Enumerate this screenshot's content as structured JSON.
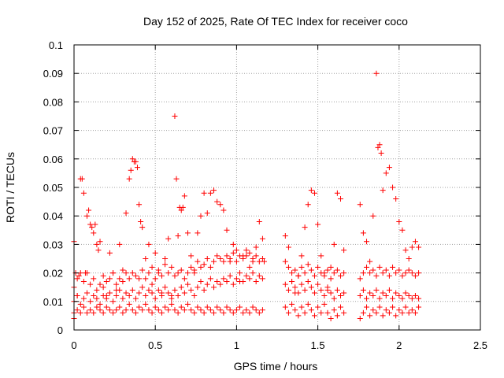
{
  "chart_data": {
    "type": "scatter",
    "title": "Day 152 of 2025, Rate Of TEC Index for receiver coco",
    "xlabel": "GPS time / hours",
    "ylabel": "ROTI / TECUs",
    "xlim": [
      0,
      2.5
    ],
    "ylim": [
      0,
      0.1
    ],
    "xticks": [
      0,
      0.5,
      1,
      1.5,
      2,
      2.5
    ],
    "yticks": [
      0,
      0.01,
      0.02,
      0.03,
      0.04,
      0.05,
      0.06,
      0.07,
      0.08,
      0.09,
      0.1
    ],
    "xtick_labels": [
      "0",
      "0.5",
      "1",
      "1.5",
      "2",
      "2.5"
    ],
    "ytick_labels": [
      "0",
      "0.01",
      "0.02",
      "0.03",
      "0.04",
      "0.05",
      "0.06",
      "0.07",
      "0.08",
      "0.09",
      "0.1"
    ],
    "grid": true,
    "marker": "plus",
    "color": "#ff0000",
    "series": [
      {
        "x": [
          0.0,
          0.0,
          0.01,
          0.02,
          0.03,
          0.04,
          0.05,
          0.06,
          0.07,
          0.08,
          0.09,
          0.1,
          0.11,
          0.12,
          0.13,
          0.14,
          0.15,
          0.16,
          0.18,
          0.2,
          0.22,
          0.24,
          0.26,
          0.28,
          0.3,
          0.32,
          0.34,
          0.35,
          0.36,
          0.37,
          0.38,
          0.39,
          0.4,
          0.41,
          0.42,
          0.44,
          0.46,
          0.48,
          0.5,
          0.52,
          0.54,
          0.56,
          0.58,
          0.6,
          0.62,
          0.63,
          0.64,
          0.65,
          0.66,
          0.67,
          0.68,
          0.7,
          0.72,
          0.74,
          0.76,
          0.78,
          0.8,
          0.82,
          0.84,
          0.86,
          0.88,
          0.9,
          0.92,
          0.94,
          0.96,
          0.98,
          1.0,
          1.02,
          1.04,
          1.06,
          1.08,
          1.1,
          1.12,
          1.14,
          1.16,
          1.17,
          1.3,
          1.32,
          1.34,
          1.36,
          1.38,
          1.4,
          1.42,
          1.44,
          1.46,
          1.48,
          1.5,
          1.52,
          1.54,
          1.56,
          1.58,
          1.6,
          1.62,
          1.64,
          1.66,
          1.76,
          1.78,
          1.8,
          1.82,
          1.84,
          1.86,
          1.87,
          1.88,
          1.89,
          1.9,
          1.92,
          1.94,
          1.96,
          1.98,
          2.0,
          2.02,
          2.04,
          2.06,
          2.08,
          2.1,
          2.12
        ],
        "y": [
          0.031,
          0.004,
          0.02,
          0.012,
          0.019,
          0.053,
          0.053,
          0.048,
          0.02,
          0.04,
          0.042,
          0.037,
          0.036,
          0.034,
          0.037,
          0.03,
          0.028,
          0.031,
          0.015,
          0.012,
          0.027,
          0.02,
          0.014,
          0.03,
          0.021,
          0.041,
          0.053,
          0.056,
          0.06,
          0.059,
          0.059,
          0.057,
          0.044,
          0.038,
          0.036,
          0.025,
          0.03,
          0.016,
          0.027,
          0.02,
          0.013,
          0.025,
          0.032,
          0.012,
          0.075,
          0.053,
          0.033,
          0.043,
          0.042,
          0.043,
          0.047,
          0.034,
          0.026,
          0.02,
          0.034,
          0.04,
          0.048,
          0.041,
          0.048,
          0.049,
          0.045,
          0.044,
          0.042,
          0.035,
          0.024,
          0.03,
          0.028,
          0.017,
          0.026,
          0.028,
          0.022,
          0.024,
          0.029,
          0.038,
          0.032,
          0.024,
          0.033,
          0.029,
          0.017,
          0.013,
          0.019,
          0.026,
          0.036,
          0.044,
          0.049,
          0.048,
          0.037,
          0.026,
          0.02,
          0.014,
          0.022,
          0.03,
          0.048,
          0.046,
          0.028,
          0.044,
          0.034,
          0.031,
          0.024,
          0.04,
          0.09,
          0.064,
          0.065,
          0.062,
          0.049,
          0.055,
          0.057,
          0.05,
          0.046,
          0.038,
          0.035,
          0.028,
          0.025,
          0.029,
          0.031,
          0.029
        ]
      },
      {
        "x": [
          0.0,
          0.02,
          0.04,
          0.06,
          0.08,
          0.1,
          0.12,
          0.14,
          0.16,
          0.18,
          0.2,
          0.22,
          0.24,
          0.26,
          0.28,
          0.3,
          0.32,
          0.34,
          0.36,
          0.38,
          0.4,
          0.42,
          0.44,
          0.46,
          0.48,
          0.5,
          0.52,
          0.54,
          0.56,
          0.58,
          0.6,
          0.62,
          0.64,
          0.66,
          0.68,
          0.7,
          0.72,
          0.74,
          0.76,
          0.78,
          0.8,
          0.82,
          0.84,
          0.86,
          0.88,
          0.9,
          0.92,
          0.94,
          0.96,
          0.98,
          1.0,
          1.02,
          1.04,
          1.06,
          1.08,
          1.1,
          1.12,
          1.14,
          1.16,
          1.3,
          1.32,
          1.34,
          1.36,
          1.38,
          1.4,
          1.42,
          1.44,
          1.46,
          1.48,
          1.5,
          1.52,
          1.54,
          1.56,
          1.58,
          1.6,
          1.62,
          1.64,
          1.66,
          1.76,
          1.78,
          1.8,
          1.82,
          1.84,
          1.86,
          1.88,
          1.9,
          1.92,
          1.94,
          1.96,
          1.98,
          2.0,
          2.02,
          2.04,
          2.06,
          2.08,
          2.1,
          2.12
        ],
        "y": [
          0.015,
          0.018,
          0.02,
          0.017,
          0.02,
          0.016,
          0.018,
          0.014,
          0.016,
          0.019,
          0.017,
          0.018,
          0.02,
          0.016,
          0.018,
          0.017,
          0.02,
          0.018,
          0.02,
          0.019,
          0.018,
          0.021,
          0.018,
          0.02,
          0.022,
          0.018,
          0.021,
          0.019,
          0.023,
          0.02,
          0.022,
          0.019,
          0.02,
          0.021,
          0.018,
          0.02,
          0.022,
          0.021,
          0.024,
          0.022,
          0.023,
          0.025,
          0.022,
          0.024,
          0.026,
          0.025,
          0.024,
          0.026,
          0.025,
          0.027,
          0.024,
          0.026,
          0.025,
          0.026,
          0.027,
          0.025,
          0.026,
          0.024,
          0.025,
          0.024,
          0.022,
          0.02,
          0.021,
          0.019,
          0.022,
          0.02,
          0.023,
          0.021,
          0.019,
          0.022,
          0.02,
          0.019,
          0.021,
          0.018,
          0.02,
          0.021,
          0.019,
          0.02,
          0.018,
          0.02,
          0.022,
          0.02,
          0.021,
          0.019,
          0.022,
          0.02,
          0.021,
          0.019,
          0.022,
          0.02,
          0.021,
          0.019,
          0.02,
          0.021,
          0.02,
          0.019,
          0.02
        ]
      },
      {
        "x": [
          0.0,
          0.02,
          0.04,
          0.06,
          0.08,
          0.1,
          0.12,
          0.14,
          0.16,
          0.18,
          0.2,
          0.22,
          0.24,
          0.26,
          0.28,
          0.3,
          0.32,
          0.34,
          0.36,
          0.38,
          0.4,
          0.42,
          0.44,
          0.46,
          0.48,
          0.5,
          0.52,
          0.54,
          0.56,
          0.58,
          0.6,
          0.62,
          0.64,
          0.66,
          0.68,
          0.7,
          0.72,
          0.74,
          0.76,
          0.78,
          0.8,
          0.82,
          0.84,
          0.86,
          0.88,
          0.9,
          0.92,
          0.94,
          0.96,
          0.98,
          1.0,
          1.02,
          1.04,
          1.06,
          1.08,
          1.1,
          1.12,
          1.14,
          1.16,
          1.3,
          1.32,
          1.34,
          1.36,
          1.38,
          1.4,
          1.42,
          1.44,
          1.46,
          1.48,
          1.5,
          1.52,
          1.54,
          1.56,
          1.58,
          1.6,
          1.62,
          1.64,
          1.66,
          1.76,
          1.78,
          1.8,
          1.82,
          1.84,
          1.86,
          1.88,
          1.9,
          1.92,
          1.94,
          1.96,
          1.98,
          2.0,
          2.02,
          2.04,
          2.06,
          2.08,
          2.1,
          2.12
        ],
        "y": [
          0.01,
          0.012,
          0.009,
          0.011,
          0.013,
          0.01,
          0.012,
          0.011,
          0.009,
          0.012,
          0.011,
          0.013,
          0.01,
          0.012,
          0.014,
          0.011,
          0.013,
          0.012,
          0.014,
          0.011,
          0.013,
          0.015,
          0.012,
          0.014,
          0.013,
          0.011,
          0.014,
          0.012,
          0.015,
          0.013,
          0.011,
          0.014,
          0.012,
          0.015,
          0.013,
          0.016,
          0.014,
          0.012,
          0.015,
          0.017,
          0.014,
          0.016,
          0.018,
          0.015,
          0.017,
          0.016,
          0.018,
          0.017,
          0.019,
          0.016,
          0.018,
          0.02,
          0.017,
          0.019,
          0.018,
          0.02,
          0.017,
          0.019,
          0.018,
          0.016,
          0.014,
          0.017,
          0.015,
          0.013,
          0.016,
          0.014,
          0.017,
          0.015,
          0.013,
          0.016,
          0.014,
          0.012,
          0.015,
          0.013,
          0.011,
          0.014,
          0.012,
          0.013,
          0.012,
          0.014,
          0.011,
          0.013,
          0.012,
          0.014,
          0.011,
          0.013,
          0.012,
          0.014,
          0.011,
          0.013,
          0.012,
          0.011,
          0.013,
          0.012,
          0.011,
          0.012,
          0.011
        ]
      },
      {
        "x": [
          0.0,
          0.02,
          0.04,
          0.06,
          0.08,
          0.1,
          0.12,
          0.14,
          0.16,
          0.18,
          0.2,
          0.22,
          0.24,
          0.26,
          0.28,
          0.3,
          0.32,
          0.34,
          0.36,
          0.38,
          0.4,
          0.42,
          0.44,
          0.46,
          0.48,
          0.5,
          0.52,
          0.54,
          0.56,
          0.58,
          0.6,
          0.62,
          0.64,
          0.66,
          0.68,
          0.7,
          0.72,
          0.74,
          0.76,
          0.78,
          0.8,
          0.82,
          0.84,
          0.86,
          0.88,
          0.9,
          0.92,
          0.94,
          0.96,
          0.98,
          1.0,
          1.02,
          1.04,
          1.06,
          1.08,
          1.1,
          1.12,
          1.14,
          1.16,
          1.3,
          1.32,
          1.34,
          1.36,
          1.38,
          1.4,
          1.42,
          1.44,
          1.46,
          1.48,
          1.5,
          1.52,
          1.54,
          1.56,
          1.58,
          1.6,
          1.62,
          1.64,
          1.66,
          1.76,
          1.78,
          1.8,
          1.82,
          1.84,
          1.86,
          1.88,
          1.9,
          1.92,
          1.94,
          1.96,
          1.98,
          2.0,
          2.02,
          2.04,
          2.06,
          2.08,
          2.1,
          2.12
        ],
        "y": [
          0.006,
          0.007,
          0.006,
          0.008,
          0.006,
          0.007,
          0.006,
          0.008,
          0.007,
          0.006,
          0.008,
          0.007,
          0.006,
          0.007,
          0.008,
          0.006,
          0.007,
          0.009,
          0.007,
          0.006,
          0.008,
          0.007,
          0.009,
          0.007,
          0.006,
          0.008,
          0.007,
          0.006,
          0.008,
          0.007,
          0.009,
          0.007,
          0.006,
          0.008,
          0.007,
          0.009,
          0.007,
          0.006,
          0.008,
          0.007,
          0.006,
          0.008,
          0.007,
          0.006,
          0.008,
          0.007,
          0.006,
          0.008,
          0.007,
          0.006,
          0.007,
          0.008,
          0.006,
          0.007,
          0.006,
          0.008,
          0.007,
          0.006,
          0.007,
          0.008,
          0.006,
          0.009,
          0.007,
          0.005,
          0.008,
          0.006,
          0.009,
          0.007,
          0.005,
          0.008,
          0.006,
          0.009,
          0.006,
          0.004,
          0.007,
          0.005,
          0.008,
          0.006,
          0.004,
          0.006,
          0.008,
          0.005,
          0.007,
          0.006,
          0.008,
          0.005,
          0.007,
          0.006,
          0.008,
          0.005,
          0.007,
          0.006,
          0.008,
          0.006,
          0.007,
          0.006,
          0.008
        ]
      }
    ]
  }
}
